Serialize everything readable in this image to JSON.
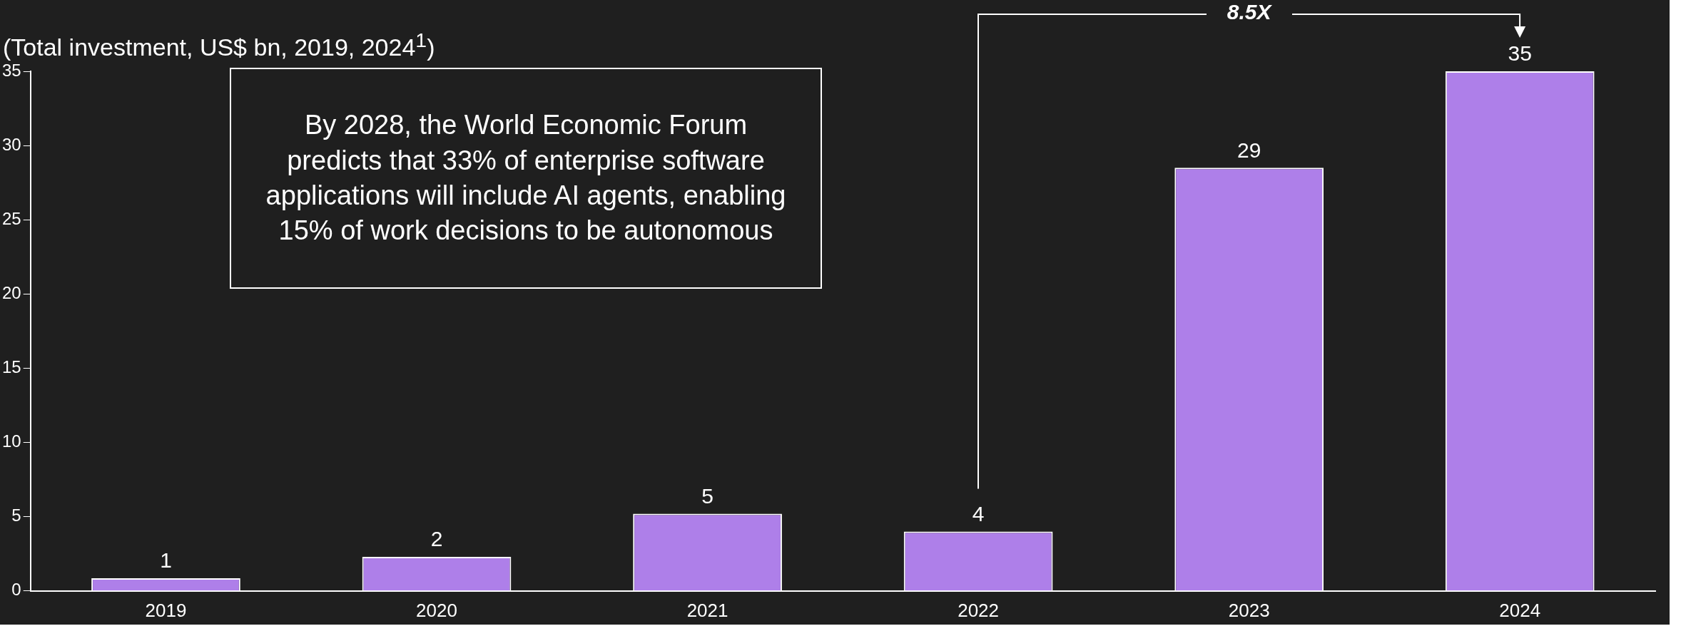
{
  "chart_data": {
    "type": "bar",
    "title": "(Total investment, US$ bn, 2019, 2024$^{1}$)",
    "categories": [
      "2019",
      "2020",
      "2021",
      "2022",
      "2023",
      "2024"
    ],
    "values": [
      0.85,
      2.3,
      5.2,
      4.0,
      28.5,
      35
    ],
    "value_labels": [
      "1",
      "2",
      "5",
      "4",
      "29",
      "35"
    ],
    "color": "#ae7fe9",
    "ylim": [
      0,
      35
    ],
    "yticks": [
      0,
      5,
      10,
      15,
      20,
      25,
      30,
      35
    ],
    "grid": false,
    "annotations": [
      "By 2028, the World Economic Forum predicts that 33% of enterprise software applications will include AI agents, enabling 15% of work decisions to be autonomous",
      "8.5X"
    ]
  }
}
